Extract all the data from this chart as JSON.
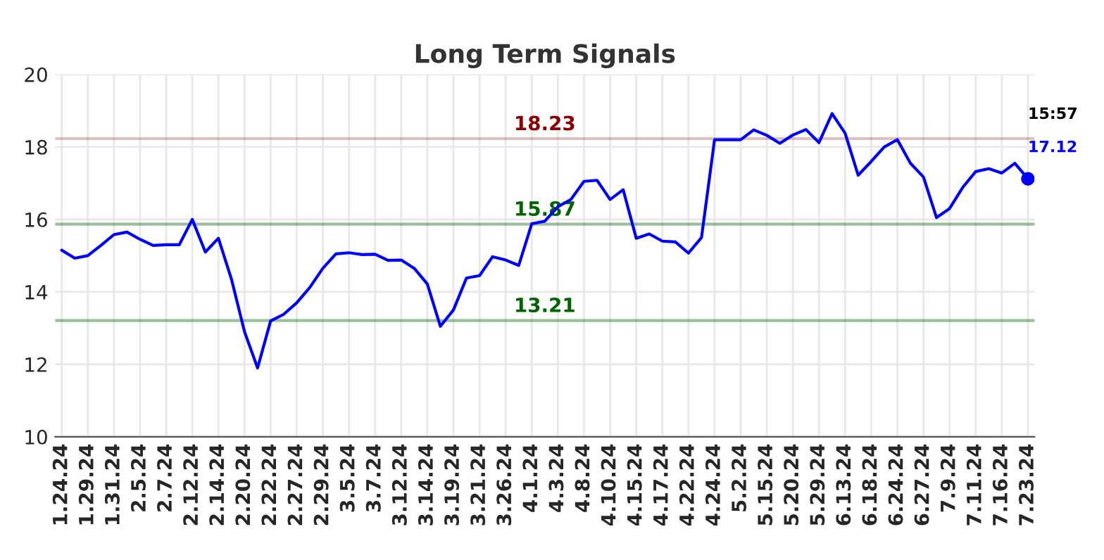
{
  "chart_data": {
    "type": "line",
    "title": "Long Term Signals",
    "categories": [
      "1.24.24",
      null,
      "1.29.24",
      null,
      "1.31.24",
      null,
      "2.5.24",
      null,
      "2.7.24",
      null,
      "2.12.24",
      null,
      "2.14.24",
      null,
      "2.20.24",
      null,
      "2.22.24",
      null,
      "2.27.24",
      null,
      "2.29.24",
      null,
      "3.5.24",
      null,
      "3.7.24",
      null,
      "3.12.24",
      null,
      "3.14.24",
      null,
      "3.19.24",
      null,
      "3.21.24",
      null,
      "3.26.24",
      null,
      "4.1.24",
      null,
      "4.3.24",
      null,
      "4.8.24",
      null,
      "4.10.24",
      null,
      "4.15.24",
      null,
      "4.17.24",
      null,
      "4.22.24",
      null,
      "4.24.24",
      null,
      "5.2.24",
      null,
      "5.15.24",
      null,
      "5.20.24",
      null,
      "5.29.24",
      null,
      "6.13.24",
      null,
      "6.18.24",
      null,
      "6.24.24",
      null,
      "6.27.24",
      null,
      "7.9.24",
      null,
      "7.11.24",
      null,
      "7.16.24",
      null,
      "7.23.24"
    ],
    "series": [
      {
        "color": "#0000ff",
        "values": [
          15.15,
          14.93,
          15.0,
          15.28,
          15.58,
          15.65,
          15.45,
          15.28,
          15.3,
          15.3,
          16.0,
          15.1,
          15.48,
          14.35,
          12.9,
          11.9,
          13.2,
          13.38,
          13.7,
          14.12,
          14.65,
          15.05,
          15.08,
          15.03,
          15.04,
          14.87,
          14.88,
          14.65,
          14.22,
          13.05,
          13.5,
          14.38,
          14.45,
          14.97,
          14.88,
          14.73,
          15.88,
          15.95,
          16.35,
          16.55,
          17.05,
          17.08,
          16.55,
          16.82,
          15.48,
          15.6,
          15.4,
          15.38,
          15.07,
          15.5,
          18.2,
          18.2,
          18.2,
          18.47,
          18.32,
          18.1,
          18.33,
          18.48,
          18.12,
          18.92,
          18.38,
          17.22,
          17.6,
          18.0,
          18.2,
          17.55,
          17.17,
          16.05,
          16.3,
          16.88,
          17.32,
          17.4,
          17.28,
          17.55,
          17.12
        ]
      }
    ],
    "ylim": [
      10,
      20
    ],
    "yticks": [
      10,
      12,
      14,
      16,
      18,
      20
    ],
    "grid": true,
    "ref_lines": [
      {
        "axis": "y",
        "value": 18.23,
        "label": "18.23",
        "color": "#8b0000"
      },
      {
        "axis": "y",
        "value": 15.87,
        "label": "15.87",
        "color": "#006400"
      },
      {
        "axis": "y",
        "value": 13.21,
        "label": "13.21",
        "color": "#006400"
      }
    ],
    "annotations": [
      "15:57",
      {
        "text": "17.12",
        "x": "7.23.24",
        "y": 17.12
      }
    ]
  }
}
